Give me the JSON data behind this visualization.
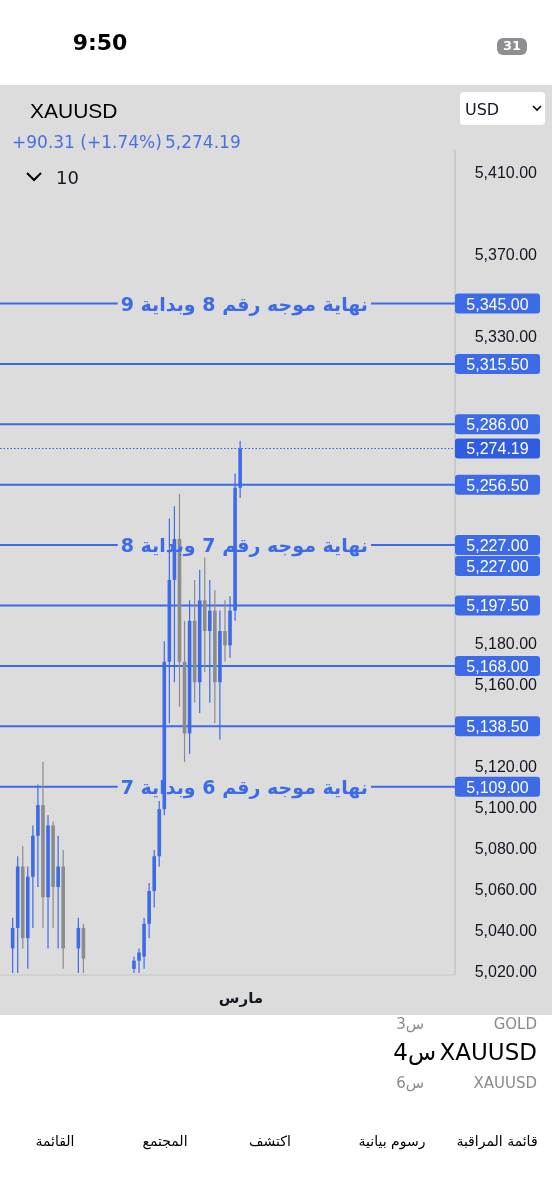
{
  "chart_data": {
    "type": "candlestick",
    "title": "XAUUSD",
    "categories": [
      null,
      null,
      null,
      null,
      null,
      null,
      null,
      null,
      null,
      null,
      null,
      null,
      null,
      null,
      null,
      null,
      null,
      null,
      null,
      null,
      null,
      null,
      null,
      null,
      null,
      null,
      null,
      null,
      null,
      null,
      null,
      null,
      null,
      null,
      null,
      null,
      null,
      null,
      null,
      null,
      null,
      null,
      null,
      null,
      null,
      null,
      null,
      null,
      null,
      null,
      null,
      null,
      null,
      null,
      null,
      null,
      null,
      null,
      null,
      null,
      null,
      null,
      null,
      null,
      null,
      null,
      null,
      null,
      null,
      null,
      null,
      null,
      null,
      null,
      null,
      null,
      null,
      null,
      null,
      null,
      null,
      null,
      null,
      null,
      null,
      null,
      null,
      null,
      null,
      null
    ],
    "ohlc": [
      null,
      null,
      [
        5030,
        5045,
        5018,
        5040
      ],
      [
        5040,
        5075,
        5018,
        5070
      ],
      [
        5070,
        5080,
        5030,
        5035
      ],
      [
        5035,
        5070,
        5020,
        5065
      ],
      [
        5065,
        5090,
        5040,
        5085
      ],
      [
        5085,
        5110,
        5060,
        5100
      ],
      [
        5100,
        5121,
        5040,
        5055
      ],
      [
        5055,
        5095,
        5030,
        5090
      ],
      [
        5090,
        5092,
        5040,
        5060
      ],
      [
        5060,
        5085,
        5030,
        5070
      ],
      [
        5070,
        5078,
        5020,
        5030
      ],
      null,
      null,
      [
        5030,
        5045,
        5018,
        5040
      ],
      [
        5040,
        5042,
        5018,
        5025
      ],
      null,
      null,
      null,
      null,
      null,
      null,
      null,
      null,
      null,
      [
        5020,
        5026,
        5018,
        5024
      ],
      [
        5024,
        5030,
        5018,
        5028
      ],
      [
        5026,
        5045,
        5020,
        5042
      ],
      [
        5042,
        5062,
        5035,
        5058
      ],
      [
        5058,
        5078,
        5050,
        5075
      ],
      [
        5075,
        5102,
        5070,
        5098
      ],
      [
        5098,
        5180,
        5095,
        5170
      ],
      [
        5170,
        5240,
        5140,
        5210
      ],
      [
        5210,
        5246,
        5160,
        5230
      ],
      [
        5230,
        5252,
        5148,
        5170
      ],
      [
        5170,
        5190,
        5121,
        5135
      ],
      [
        5135,
        5200,
        5125,
        5190
      ],
      [
        5190,
        5210,
        5150,
        5160
      ],
      [
        5160,
        5215,
        5145,
        5200
      ],
      [
        5200,
        5221,
        5165,
        5185
      ],
      [
        5185,
        5210,
        5150,
        5195
      ],
      [
        5195,
        5205,
        5140,
        5160
      ],
      [
        5160,
        5195,
        5132,
        5185
      ],
      [
        5185,
        5200,
        5170,
        5178
      ],
      [
        5178,
        5202,
        5172,
        5195
      ],
      [
        5195,
        5262,
        5190,
        5255
      ],
      [
        5255,
        5278,
        5250,
        5274.19
      ],
      null,
      null,
      null,
      null,
      null,
      null,
      null,
      null,
      null,
      null,
      null,
      null,
      null,
      null,
      null,
      null,
      null,
      null,
      null,
      null,
      null,
      null,
      null,
      null,
      null,
      null,
      null,
      null,
      null,
      null,
      null,
      null,
      null,
      null,
      null,
      null,
      null,
      null,
      null,
      null,
      null,
      null
    ],
    "colors": [
      null,
      null,
      "#3d6be8",
      "#3d6be8",
      "#8c8c8c",
      "#3d6be8",
      "#3d6be8",
      "#3d6be8",
      "#8c8c8c",
      "#3d6be8",
      "#8c8c8c",
      "#3d6be8",
      "#8c8c8c",
      null,
      null,
      "#3d6be8",
      "#8c8c8c",
      null,
      null,
      null,
      null,
      null,
      null,
      null,
      null,
      null,
      "#3d6be8",
      "#3d6be8",
      "#3d6be8",
      "#3d6be8",
      "#3d6be8",
      "#3d6be8",
      "#3d6be8",
      "#3d6be8",
      "#3d6be8",
      "#8c8c8c",
      "#8c8c8c",
      "#3d6be8",
      "#8c8c8c",
      "#3d6be8",
      "#8c8c8c",
      "#3d6be8",
      "#8c8c8c",
      "#3d6be8",
      "#8c8c8c",
      "#3d6be8",
      "#3d6be8",
      "#3d6be8",
      null,
      null,
      null,
      null,
      null,
      null,
      null,
      null,
      null,
      null,
      null,
      null,
      null,
      null,
      null,
      null,
      null,
      null,
      null,
      null,
      null,
      null,
      null,
      null,
      null,
      null,
      null,
      null,
      null,
      null,
      null,
      null,
      null,
      null,
      null,
      null,
      null,
      null,
      null,
      null,
      null,
      null
    ],
    "ylim": [
      5017,
      5420
    ],
    "yticks": [
      {
        "value": 5410,
        "label": "5,410.00"
      },
      {
        "value": 5370,
        "label": "5,370.00"
      },
      {
        "value": 5330,
        "label": "5,330.00"
      },
      {
        "value": 5180,
        "label": "5,180.00"
      },
      {
        "value": 5160,
        "label": "5,160.00"
      },
      {
        "value": 5120,
        "label": "5,120.00"
      },
      {
        "value": 5100,
        "label": "5,100.00"
      },
      {
        "value": 5080,
        "label": "5,080.00"
      },
      {
        "value": 5060,
        "label": "5,060.00"
      },
      {
        "value": 5040,
        "label": "5,040.00"
      },
      {
        "value": 5020,
        "label": "5,020.00"
      }
    ],
    "ref_lines": [
      {
        "axis": "y",
        "value": 5345,
        "label": "5,345.00",
        "color": "#3d6be8",
        "line_style": "solid"
      },
      {
        "axis": "y",
        "value": 5315.5,
        "label": "5,315.50",
        "color": "#3d6be8",
        "line_style": "solid"
      },
      {
        "axis": "y",
        "value": 5286,
        "label": "5,286.00",
        "color": "#3d6be8",
        "line_style": "solid"
      },
      {
        "axis": "y",
        "value": 5274.19,
        "label": "5,274.19",
        "color": "#2f5ce0",
        "line_style": "dotted"
      },
      {
        "axis": "y",
        "value": 5256.5,
        "label": "5,256.50",
        "color": "#3d6be8",
        "line_style": "solid"
      },
      {
        "axis": "y",
        "value": 5227,
        "label": "5,227.00",
        "color": "#3d6be8",
        "line_style": "solid"
      },
      {
        "axis": "y",
        "value": 5197.5,
        "label": "5,197.50",
        "color": "#3d6be8",
        "line_style": "solid"
      },
      {
        "axis": "y",
        "value": 5168,
        "label": "5,168.00",
        "color": "#3d6be8",
        "line_style": "solid"
      },
      {
        "axis": "y",
        "value": 5138.5,
        "label": "5,138.50",
        "color": "#3d6be8",
        "line_style": "solid"
      },
      {
        "axis": "y",
        "value": 5109,
        "label": "5,109.00",
        "color": "#3d6be8",
        "line_style": "solid"
      }
    ],
    "annotations": [
      {
        "text": "نهاية موجه رقم 8 وبداية 9",
        "y": 5345
      },
      {
        "text": "نهاية موجه رقم 7 وبداية 8",
        "y": 5227
      },
      {
        "text": "نهاية موجه رقم 6 وبداية 7",
        "y": 5109
      },
      "9:50",
      "31",
      "+90.31 (+1.74%)",
      "5,274.19",
      "10",
      "USD",
      "مارس",
      "XAUUSD",
      "4س",
      "GOLD",
      "3س",
      "XAUUSD",
      "6س",
      "قائمة المراقبة",
      "رسوم بيانية",
      "اكتشف",
      "المجتمع",
      "القائمة",
      "5,227.00"
    ]
  }
}
